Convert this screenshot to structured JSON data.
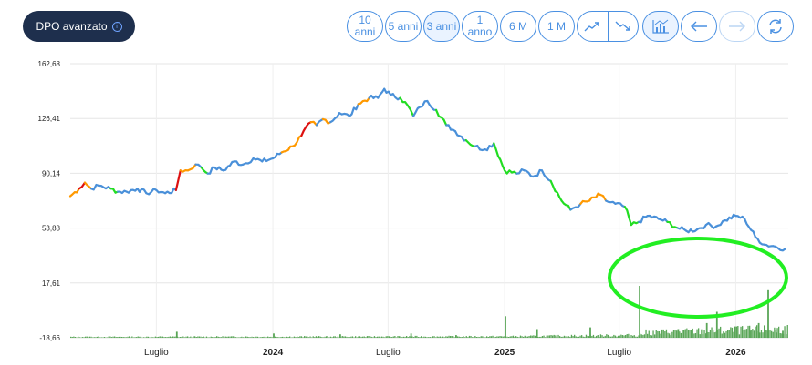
{
  "header": {
    "dpo_label": "DPO avanzato"
  },
  "toolbar": {
    "range_10y": "10 anni",
    "range_5y": "5 anni",
    "range_3y": "3 anni",
    "range_1y": "1 anno",
    "range_6m": "6 M",
    "range_1m": "1 M",
    "active_range": "3 anni"
  },
  "icons": [
    "info-icon",
    "trend-up-icon",
    "trend-down-icon",
    "volume-icon",
    "arrow-left-icon",
    "arrow-right-icon",
    "refresh-icon"
  ],
  "colors": {
    "price": "#4a90d9",
    "bull": "#22dd22",
    "warn": "#ff9900",
    "bear": "#dd1111",
    "volume": "#5aa657",
    "annotation": "#22ee22",
    "nav": "#1e2f4d"
  },
  "chart_data": {
    "type": "line",
    "y_ticks": [
      "162,68",
      "126,41",
      "90,14",
      "53,88",
      "17,61",
      "-18,66"
    ],
    "y_tick_values": [
      162.68,
      126.41,
      90.14,
      53.88,
      17.61,
      -18.66
    ],
    "ylim": [
      -18.66,
      162.68
    ],
    "x_ticks": [
      {
        "label": "Luglio",
        "date": "2023-07-01",
        "bold": false
      },
      {
        "label": "2024",
        "date": "2024-01-01",
        "bold": true
      },
      {
        "label": "Luglio",
        "date": "2024-07-01",
        "bold": false
      },
      {
        "label": "2025",
        "date": "2025-01-01",
        "bold": true
      },
      {
        "label": "Luglio",
        "date": "2025-07-01",
        "bold": false
      },
      {
        "label": "2026",
        "date": "2026-01-01",
        "bold": true
      }
    ],
    "xlim": [
      "2023-02-15",
      "2026-03-25"
    ],
    "price_series": [
      [
        "2023-02-15",
        75,
        "blue"
      ],
      [
        "2023-03-01",
        80,
        "orange"
      ],
      [
        "2023-03-10",
        84,
        "red"
      ],
      [
        "2023-03-20",
        80,
        "orange"
      ],
      [
        "2023-04-01",
        82,
        "blue"
      ],
      [
        "2023-04-20",
        80,
        "blue"
      ],
      [
        "2023-05-01",
        78,
        "green"
      ],
      [
        "2023-05-15",
        78,
        "blue"
      ],
      [
        "2023-06-01",
        80,
        "blue"
      ],
      [
        "2023-06-15",
        77,
        "blue"
      ],
      [
        "2023-07-01",
        79,
        "blue"
      ],
      [
        "2023-07-15",
        77,
        "blue"
      ],
      [
        "2023-08-01",
        79,
        "blue"
      ],
      [
        "2023-08-08",
        92,
        "red"
      ],
      [
        "2023-08-20",
        92,
        "orange"
      ],
      [
        "2023-09-01",
        96,
        "orange"
      ],
      [
        "2023-09-10",
        94,
        "blue"
      ],
      [
        "2023-09-20",
        90,
        "green"
      ],
      [
        "2023-10-01",
        94,
        "blue"
      ],
      [
        "2023-10-15",
        92,
        "blue"
      ],
      [
        "2023-11-01",
        98,
        "blue"
      ],
      [
        "2023-11-15",
        96,
        "blue"
      ],
      [
        "2023-12-01",
        100,
        "blue"
      ],
      [
        "2023-12-15",
        98,
        "blue"
      ],
      [
        "2024-01-01",
        100,
        "blue"
      ],
      [
        "2024-01-15",
        104,
        "blue"
      ],
      [
        "2024-02-01",
        108,
        "orange"
      ],
      [
        "2024-02-15",
        115,
        "orange"
      ],
      [
        "2024-03-01",
        124,
        "red"
      ],
      [
        "2024-03-10",
        122,
        "orange"
      ],
      [
        "2024-03-20",
        126,
        "blue"
      ],
      [
        "2024-04-01",
        124,
        "orange"
      ],
      [
        "2024-04-15",
        130,
        "blue"
      ],
      [
        "2024-05-01",
        128,
        "blue"
      ],
      [
        "2024-05-15",
        136,
        "blue"
      ],
      [
        "2024-06-01",
        140,
        "orange"
      ],
      [
        "2024-06-15",
        140,
        "blue"
      ],
      [
        "2024-06-25",
        146,
        "blue"
      ],
      [
        "2024-07-05",
        142,
        "blue"
      ],
      [
        "2024-07-20",
        140,
        "blue"
      ],
      [
        "2024-08-01",
        135,
        "green"
      ],
      [
        "2024-08-10",
        128,
        "green"
      ],
      [
        "2024-08-20",
        134,
        "blue"
      ],
      [
        "2024-09-01",
        138,
        "blue"
      ],
      [
        "2024-09-15",
        132,
        "blue"
      ],
      [
        "2024-10-01",
        122,
        "green"
      ],
      [
        "2024-10-15",
        118,
        "blue"
      ],
      [
        "2024-11-01",
        112,
        "blue"
      ],
      [
        "2024-11-15",
        108,
        "green"
      ],
      [
        "2024-12-01",
        106,
        "blue"
      ],
      [
        "2024-12-15",
        110,
        "blue"
      ],
      [
        "2025-01-01",
        92,
        "green"
      ],
      [
        "2025-01-20",
        90,
        "green"
      ],
      [
        "2025-02-01",
        92,
        "blue"
      ],
      [
        "2025-02-15",
        88,
        "blue"
      ],
      [
        "2025-03-01",
        92,
        "blue"
      ],
      [
        "2025-03-15",
        85,
        "blue"
      ],
      [
        "2025-04-01",
        72,
        "green"
      ],
      [
        "2025-04-15",
        66,
        "green"
      ],
      [
        "2025-05-01",
        70,
        "blue"
      ],
      [
        "2025-05-15",
        72,
        "orange"
      ],
      [
        "2025-06-01",
        76,
        "orange"
      ],
      [
        "2025-06-10",
        72,
        "orange"
      ],
      [
        "2025-06-25",
        70,
        "blue"
      ],
      [
        "2025-07-10",
        68,
        "blue"
      ],
      [
        "2025-07-20",
        56,
        "green"
      ],
      [
        "2025-08-01",
        58,
        "green"
      ],
      [
        "2025-08-15",
        62,
        "blue"
      ],
      [
        "2025-09-01",
        60,
        "blue"
      ],
      [
        "2025-09-15",
        58,
        "blue"
      ],
      [
        "2025-10-01",
        54,
        "green"
      ],
      [
        "2025-10-15",
        52,
        "blue"
      ],
      [
        "2025-11-01",
        53,
        "blue"
      ],
      [
        "2025-11-15",
        56,
        "blue"
      ],
      [
        "2025-12-01",
        55,
        "blue"
      ],
      [
        "2025-12-15",
        59,
        "blue"
      ],
      [
        "2026-01-01",
        62,
        "blue"
      ],
      [
        "2026-01-15",
        60,
        "blue"
      ],
      [
        "2026-02-01",
        48,
        "blue"
      ],
      [
        "2026-02-15",
        43,
        "blue"
      ],
      [
        "2026-03-01",
        42,
        "blue"
      ],
      [
        "2026-03-20",
        40,
        "blue"
      ]
    ],
    "volume_spikes": [
      [
        "2023-08-01",
        7
      ],
      [
        "2024-01-01",
        5
      ],
      [
        "2024-04-15",
        4
      ],
      [
        "2024-08-05",
        5
      ],
      [
        "2024-10-15",
        3
      ],
      [
        "2025-01-01",
        25
      ],
      [
        "2025-02-20",
        10
      ],
      [
        "2025-05-15",
        12
      ],
      [
        "2025-08-01",
        60
      ],
      [
        "2025-10-01",
        10
      ],
      [
        "2025-11-15",
        17
      ],
      [
        "2025-12-01",
        30
      ],
      [
        "2026-01-01",
        13
      ],
      [
        "2026-01-22",
        8
      ],
      [
        "2026-02-05",
        17
      ],
      [
        "2026-02-20",
        55
      ],
      [
        "2026-03-05",
        6
      ],
      [
        "2026-03-15",
        8
      ]
    ],
    "volume_baseline": [
      [
        "2023-02-15",
        1
      ],
      [
        "2025-01-01",
        1.5
      ],
      [
        "2025-08-01",
        3
      ],
      [
        "2025-08-10",
        6
      ],
      [
        "2026-03-25",
        10
      ]
    ]
  }
}
